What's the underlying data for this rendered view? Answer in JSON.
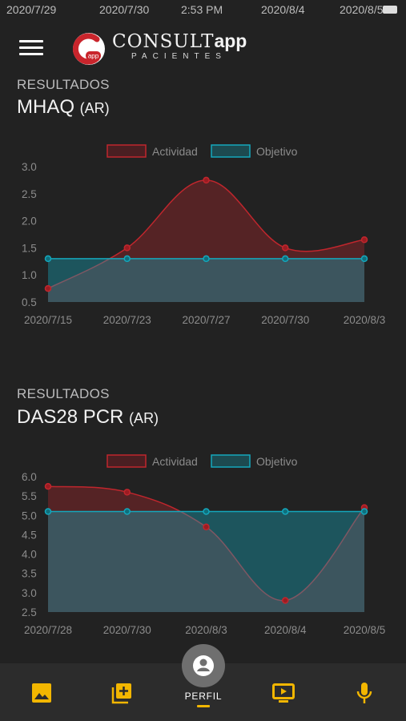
{
  "status_bar": {
    "left": "2020/7/29",
    "center": "2020/7/30",
    "time": "2:53 PM",
    "right1": "2020/8/4",
    "right2": "2020/8/5"
  },
  "header": {
    "logo_word": "CONSULT",
    "logo_app": "app",
    "logo_subtitle": "PACIENTES",
    "logo_badge_text": "app"
  },
  "sections": [
    {
      "label": "RESULTADOS",
      "name": "MHAQ",
      "suffix": "(AR)"
    },
    {
      "label": "RESULTADOS",
      "name": "DAS28 PCR",
      "suffix": "(AR)"
    }
  ],
  "chart_data": [
    {
      "type": "area",
      "legend": [
        "Actividad",
        "Objetivo"
      ],
      "legend_position": "top",
      "categories": [
        "2020/7/15",
        "2020/7/23",
        "2020/7/27",
        "2020/7/30",
        "2020/8/3"
      ],
      "series": [
        {
          "name": "Actividad",
          "values": [
            0.75,
            1.5,
            2.75,
            1.5,
            1.65
          ],
          "color": "#c0262d"
        },
        {
          "name": "Objetivo",
          "values": [
            1.3,
            1.3,
            1.3,
            1.3,
            1.3
          ],
          "color": "#14a7bc"
        }
      ],
      "ylim": [
        0.5,
        3.0
      ],
      "yticks": [
        "3.0",
        "2.5",
        "2.0",
        "1.5",
        "1.0",
        "0.5"
      ]
    },
    {
      "type": "area",
      "legend": [
        "Actividad",
        "Objetivo"
      ],
      "legend_position": "top",
      "categories": [
        "2020/7/28",
        "2020/7/30",
        "2020/8/3",
        "2020/8/4",
        "2020/8/5"
      ],
      "series": [
        {
          "name": "Actividad",
          "values": [
            5.75,
            5.6,
            4.7,
            2.8,
            5.2
          ],
          "color": "#c0262d"
        },
        {
          "name": "Objetivo",
          "values": [
            5.1,
            5.1,
            5.1,
            5.1,
            5.1
          ],
          "color": "#14a7bc"
        }
      ],
      "ylim": [
        2.5,
        6.0
      ],
      "yticks": [
        "6.0",
        "5.5",
        "5.0",
        "4.5",
        "4.0",
        "3.5",
        "3.0",
        "2.5"
      ]
    }
  ],
  "bottom_nav": {
    "profile_label": "PERFIL",
    "icons": [
      "image-icon",
      "add-library-icon",
      "account-icon",
      "play-screen-icon",
      "microphone-icon"
    ],
    "accent": "#f2b600"
  },
  "colors": {
    "background": "#222222",
    "red": "#c0262d",
    "teal": "#14a7bc",
    "accent": "#f2b600"
  }
}
